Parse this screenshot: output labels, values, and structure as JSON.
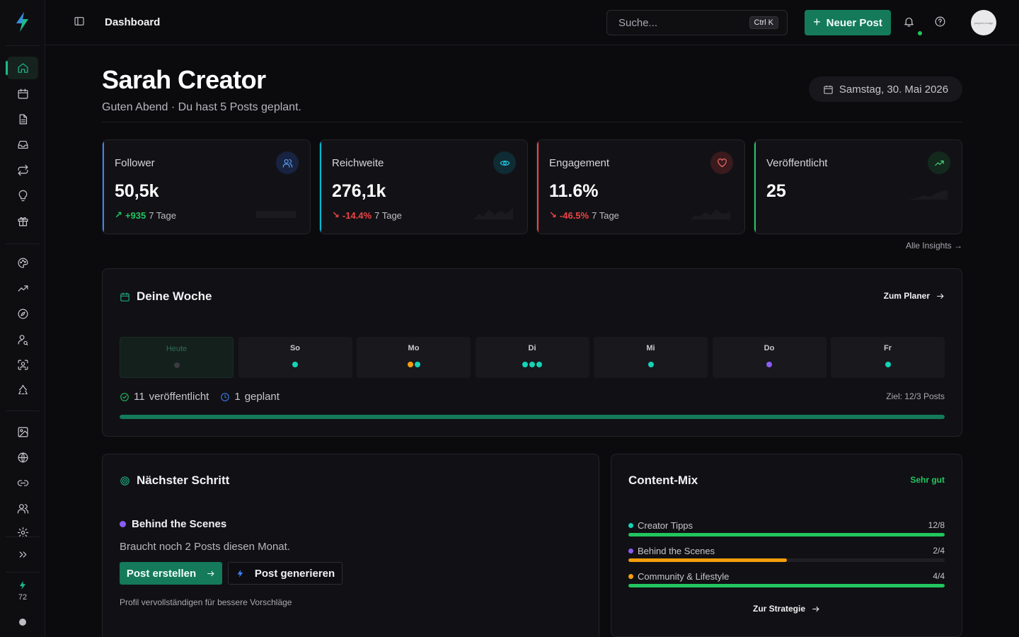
{
  "header": {
    "title": "Dashboard",
    "search_placeholder": "Suche...",
    "search_shortcut": "Ctrl K",
    "new_post_label": "Neuer Post",
    "avatar_text": "people's image"
  },
  "sidebar": {
    "items": [
      "home-icon",
      "calendar-icon",
      "document-icon",
      "inbox-icon",
      "repeat-icon",
      "lightbulb-icon",
      "gift-icon",
      "palette-icon",
      "trending-icon",
      "compass-icon",
      "user-search-icon",
      "scan-face-icon",
      "recycle-icon",
      "image-icon",
      "globe-icon",
      "link-icon",
      "users-icon",
      "settings-icon"
    ],
    "expand_icon": "chevrons-right-icon",
    "credits": "72"
  },
  "profile": {
    "name": "Sarah Creator",
    "greeting": "Guten Abend · Du hast 5 Posts geplant.",
    "date": "Samstag, 30. Mai 2026"
  },
  "stats": [
    {
      "label": "Follower",
      "value": "50,5k",
      "delta": "+935",
      "period": "7 Tage",
      "accent": "#3b82f6",
      "icon": "users-icon",
      "trend": "up"
    },
    {
      "label": "Reichweite",
      "value": "276,1k",
      "delta": "-14.4%",
      "period": "7 Tage",
      "accent": "#06b6d4",
      "icon": "eye-icon",
      "trend": "down"
    },
    {
      "label": "Engagement",
      "value": "11.6%",
      "delta": "-46.5%",
      "period": "7 Tage",
      "accent": "#ef4444",
      "icon": "heart-icon",
      "trend": "down"
    },
    {
      "label": "Veröffentlicht",
      "value": "25",
      "delta": "",
      "period": "",
      "accent": "#22c55e",
      "icon": "trending-up-icon",
      "trend": "up"
    }
  ],
  "insights_link": "Alle Insights →",
  "week": {
    "title": "Deine Woche",
    "planner_link": "Zum Planer",
    "days": [
      {
        "label": "Heute",
        "dots": [
          "#3a3a40"
        ],
        "today": true
      },
      {
        "label": "So",
        "dots": [
          "#14d3b6"
        ]
      },
      {
        "label": "Mo",
        "dots": [
          "#f59e0b",
          "#14d3b6"
        ]
      },
      {
        "label": "Di",
        "dots": [
          "#14d3b6",
          "#14d3b6",
          "#14d3b6"
        ]
      },
      {
        "label": "Mi",
        "dots": [
          "#14d3b6"
        ]
      },
      {
        "label": "Do",
        "dots": [
          "#8b5cf6"
        ]
      },
      {
        "label": "Fr",
        "dots": [
          "#14d3b6"
        ]
      }
    ],
    "published": "11",
    "published_label": "veröffentlicht",
    "planned": "1",
    "planned_label": "geplant",
    "goal": "Ziel: 12/3 Posts",
    "progress": 1.0
  },
  "next_step": {
    "title": "Nächster Schritt",
    "topic": "Behind the Scenes",
    "description": "Braucht noch 2 Posts diesen Monat.",
    "create_label": "Post erstellen",
    "generate_label": "Post generieren",
    "hint": "Profil vervollständigen für bessere Vorschläge"
  },
  "content_mix": {
    "title": "Content-Mix",
    "badge": "Sehr gut",
    "items": [
      {
        "name": "Creator Tipps",
        "count": "12/8",
        "progress": 1.0,
        "dot": "#14d3b6",
        "bar": "#22c55e"
      },
      {
        "name": "Behind the Scenes",
        "count": "2/4",
        "progress": 0.5,
        "dot": "#8b5cf6",
        "bar": "#f59e0b"
      },
      {
        "name": "Community & Lifestyle",
        "count": "4/4",
        "progress": 1.0,
        "dot": "#f59e0b",
        "bar": "#22c55e"
      }
    ],
    "strategy_link": "Zur Strategie"
  }
}
